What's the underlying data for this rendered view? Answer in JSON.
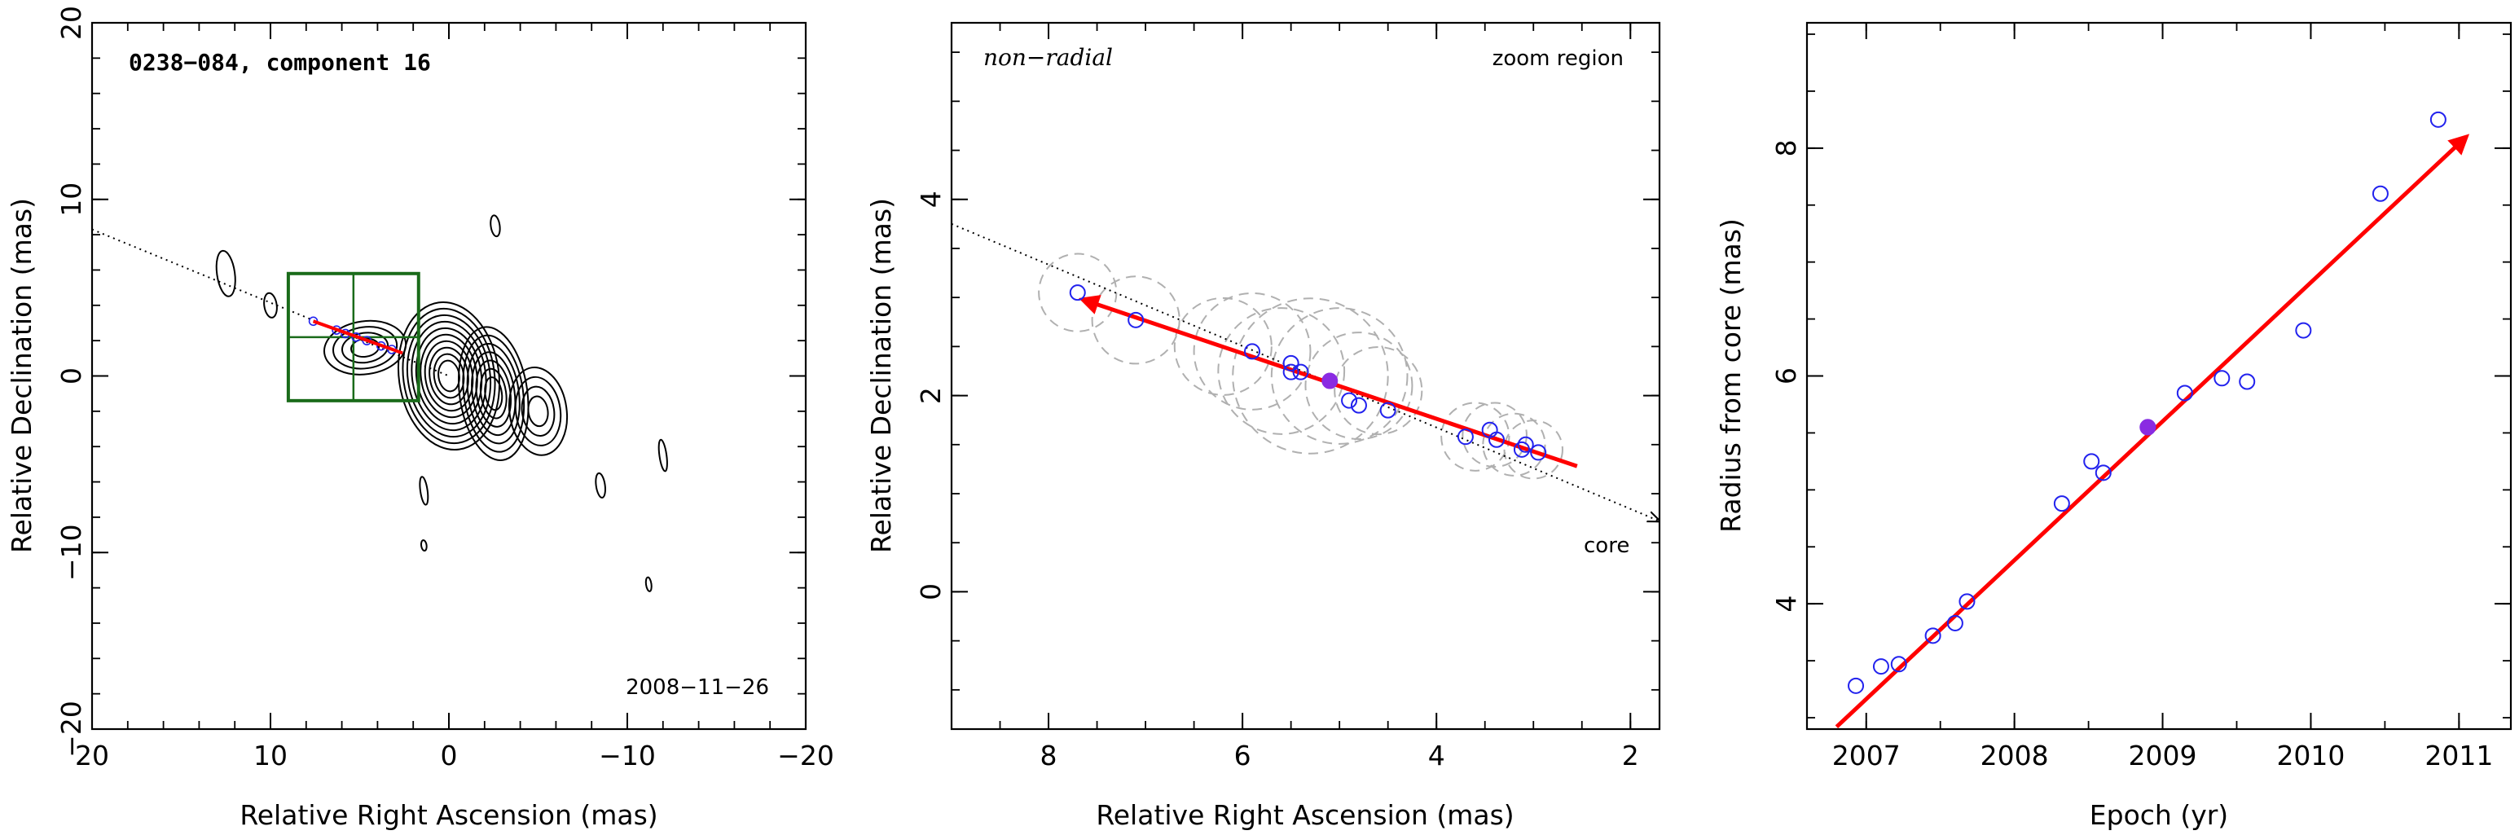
{
  "chart_data": [
    {
      "type": "contour",
      "title": "0238−084, component 16",
      "date_label": "2008−11−26",
      "xlabel": "Relative Right Ascension (mas)",
      "ylabel": "Relative Declination (mas)",
      "xlim": [
        20,
        -20
      ],
      "ylim": [
        -20,
        20
      ],
      "xticks": [
        20,
        10,
        0,
        -10,
        -20
      ],
      "yticks": [
        -20,
        -10,
        0,
        10,
        20
      ],
      "xtick_labels": [
        "20",
        "10",
        "0",
        "−10",
        "−20"
      ],
      "ytick_labels": [
        "−20",
        "−10",
        "0",
        "10",
        "20"
      ],
      "zoom_box": {
        "x": [
          1.7,
          9.0
        ],
        "y": [
          -1.4,
          5.8
        ]
      },
      "dotted_line": {
        "x": [
          20,
          0
        ],
        "y": [
          8.3,
          0
        ]
      },
      "trajectory": {
        "x": [
          7.6,
          2.6
        ],
        "y": [
          3.1,
          1.3
        ]
      },
      "contours": [
        {
          "x": 0.0,
          "y": 0.0,
          "rx": 2.8,
          "ry": 4.2,
          "levels": 10
        },
        {
          "x": -2.5,
          "y": -1.0,
          "rx": 1.9,
          "ry": 3.8,
          "levels": 7
        },
        {
          "x": -5.0,
          "y": -2.0,
          "rx": 1.6,
          "ry": 2.5,
          "levels": 4
        },
        {
          "x": 4.7,
          "y": 1.6,
          "rx": 2.3,
          "ry": 1.5,
          "levels": 4
        },
        {
          "x": 12.5,
          "y": 5.8,
          "rx": 0.5,
          "ry": 1.3,
          "levels": 1
        },
        {
          "x": 10.0,
          "y": 4.0,
          "rx": 0.35,
          "ry": 0.7,
          "levels": 1
        },
        {
          "x": -2.6,
          "y": 8.5,
          "rx": 0.25,
          "ry": 0.6,
          "levels": 1
        },
        {
          "x": -12.0,
          "y": -4.5,
          "rx": 0.2,
          "ry": 0.9,
          "levels": 1
        },
        {
          "x": 1.4,
          "y": -6.5,
          "rx": 0.2,
          "ry": 0.8,
          "levels": 1
        },
        {
          "x": -8.5,
          "y": -6.2,
          "rx": 0.25,
          "ry": 0.7,
          "levels": 1
        },
        {
          "x": 1.4,
          "y": -9.6,
          "rx": 0.15,
          "ry": 0.3,
          "levels": 1
        },
        {
          "x": -11.2,
          "y": -11.8,
          "rx": 0.15,
          "ry": 0.4,
          "levels": 1
        }
      ],
      "points": [
        {
          "x": 7.6,
          "y": 3.1
        },
        {
          "x": 6.3,
          "y": 2.6
        },
        {
          "x": 5.8,
          "y": 2.4
        },
        {
          "x": 5.2,
          "y": 2.2
        },
        {
          "x": 4.6,
          "y": 2.0
        },
        {
          "x": 3.8,
          "y": 1.7
        },
        {
          "x": 3.2,
          "y": 1.5
        }
      ]
    },
    {
      "type": "scatter",
      "title": "zoom region",
      "annotation": "non−radial",
      "core_label": "core",
      "xlabel": "Relative Right Ascension (mas)",
      "ylabel": "Relative Declination (mas)",
      "xlim": [
        9,
        1.7
      ],
      "ylim": [
        -1.4,
        5.8
      ],
      "xticks": [
        8,
        6,
        4,
        2
      ],
      "yticks": [
        0,
        2,
        4
      ],
      "xtick_labels": [
        "8",
        "6",
        "4",
        "2"
      ],
      "ytick_labels": [
        "0",
        "2",
        "4"
      ],
      "dotted_line": {
        "x": [
          9,
          1.7
        ],
        "y": [
          3.75,
          0.72
        ]
      },
      "trajectory": {
        "x": [
          2.55,
          7.65
        ],
        "y": [
          1.28,
          2.98
        ]
      },
      "highlight": {
        "x": 5.1,
        "y": 2.15
      },
      "points": [
        {
          "x": 7.7,
          "y": 3.05
        },
        {
          "x": 7.1,
          "y": 2.77
        },
        {
          "x": 5.9,
          "y": 2.45
        },
        {
          "x": 5.5,
          "y": 2.33
        },
        {
          "x": 5.5,
          "y": 2.24
        },
        {
          "x": 5.4,
          "y": 2.24
        },
        {
          "x": 4.9,
          "y": 1.95
        },
        {
          "x": 4.8,
          "y": 1.9
        },
        {
          "x": 4.5,
          "y": 1.85
        },
        {
          "x": 3.7,
          "y": 1.58
        },
        {
          "x": 3.45,
          "y": 1.65
        },
        {
          "x": 3.38,
          "y": 1.55
        },
        {
          "x": 3.12,
          "y": 1.45
        },
        {
          "x": 3.08,
          "y": 1.5
        },
        {
          "x": 2.95,
          "y": 1.42
        }
      ],
      "gaussians": [
        {
          "x": 7.7,
          "y": 3.05,
          "r": 0.4
        },
        {
          "x": 7.1,
          "y": 2.77,
          "r": 0.45
        },
        {
          "x": 6.2,
          "y": 2.5,
          "r": 0.5
        },
        {
          "x": 5.9,
          "y": 2.45,
          "r": 0.6
        },
        {
          "x": 5.6,
          "y": 2.25,
          "r": 0.65
        },
        {
          "x": 5.3,
          "y": 2.2,
          "r": 0.8
        },
        {
          "x": 5.0,
          "y": 2.2,
          "r": 0.7
        },
        {
          "x": 4.8,
          "y": 2.1,
          "r": 0.55
        },
        {
          "x": 4.6,
          "y": 2.05,
          "r": 0.45
        },
        {
          "x": 3.6,
          "y": 1.58,
          "r": 0.35
        },
        {
          "x": 3.4,
          "y": 1.6,
          "r": 0.33
        },
        {
          "x": 3.2,
          "y": 1.5,
          "r": 0.32
        },
        {
          "x": 3.0,
          "y": 1.45,
          "r": 0.3
        }
      ]
    },
    {
      "type": "scatter",
      "xlabel": "Epoch (yr)",
      "ylabel": "Radius from core (mas)",
      "xlim": [
        2006.6,
        2011.35
      ],
      "ylim": [
        2.9,
        9.1
      ],
      "xticks": [
        2007,
        2008,
        2009,
        2010,
        2011
      ],
      "yticks": [
        4,
        6,
        8
      ],
      "xtick_labels": [
        "2007",
        "2008",
        "2009",
        "2010",
        "2011"
      ],
      "ytick_labels": [
        "4",
        "6",
        "8"
      ],
      "fit": {
        "x": [
          2006.8,
          2011.05
        ],
        "y": [
          2.92,
          8.1
        ]
      },
      "highlight": {
        "x": 2008.9,
        "y": 5.55
      },
      "points": [
        {
          "x": 2006.93,
          "y": 3.28
        },
        {
          "x": 2007.1,
          "y": 3.45
        },
        {
          "x": 2007.22,
          "y": 3.47
        },
        {
          "x": 2007.45,
          "y": 3.72
        },
        {
          "x": 2007.6,
          "y": 3.83
        },
        {
          "x": 2007.68,
          "y": 4.02
        },
        {
          "x": 2008.32,
          "y": 4.88
        },
        {
          "x": 2008.52,
          "y": 5.25
        },
        {
          "x": 2008.6,
          "y": 5.15
        },
        {
          "x": 2008.9,
          "y": 5.55
        },
        {
          "x": 2009.15,
          "y": 5.85
        },
        {
          "x": 2009.4,
          "y": 5.98
        },
        {
          "x": 2009.57,
          "y": 5.95
        },
        {
          "x": 2009.95,
          "y": 6.4
        },
        {
          "x": 2010.47,
          "y": 7.6
        },
        {
          "x": 2010.86,
          "y": 8.25
        }
      ]
    }
  ]
}
